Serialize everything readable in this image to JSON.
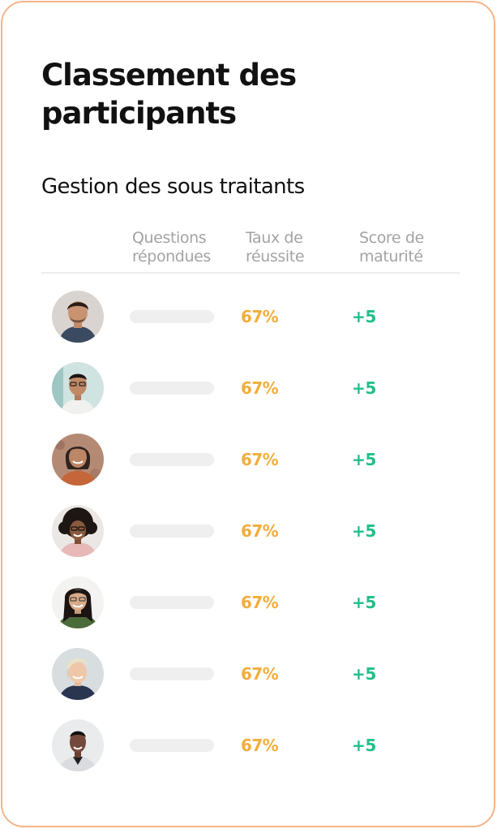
{
  "title": "Classement des participants",
  "section_title": "Gestion des sous traitants",
  "columns": {
    "questions": "Questions\nrépondues",
    "taux": "Taux de\nréussite",
    "score": "Score de\nmaturité"
  },
  "colors": {
    "card_border": "#f5b48a",
    "taux": "#f2ad3c",
    "score": "#1fbf8a",
    "header_text": "#a3a3a3",
    "bar": "#efefef"
  },
  "participants": [
    {
      "avatar_icon": "participant-photo-icon",
      "taux": "67%",
      "score": "+5"
    },
    {
      "avatar_icon": "participant-photo-icon",
      "taux": "67%",
      "score": "+5"
    },
    {
      "avatar_icon": "participant-photo-icon",
      "taux": "67%",
      "score": "+5"
    },
    {
      "avatar_icon": "participant-photo-icon",
      "taux": "67%",
      "score": "+5"
    },
    {
      "avatar_icon": "participant-photo-icon",
      "taux": "67%",
      "score": "+5"
    },
    {
      "avatar_icon": "participant-photo-icon",
      "taux": "67%",
      "score": "+5"
    },
    {
      "avatar_icon": "participant-photo-icon",
      "taux": "67%",
      "score": "+5"
    }
  ]
}
